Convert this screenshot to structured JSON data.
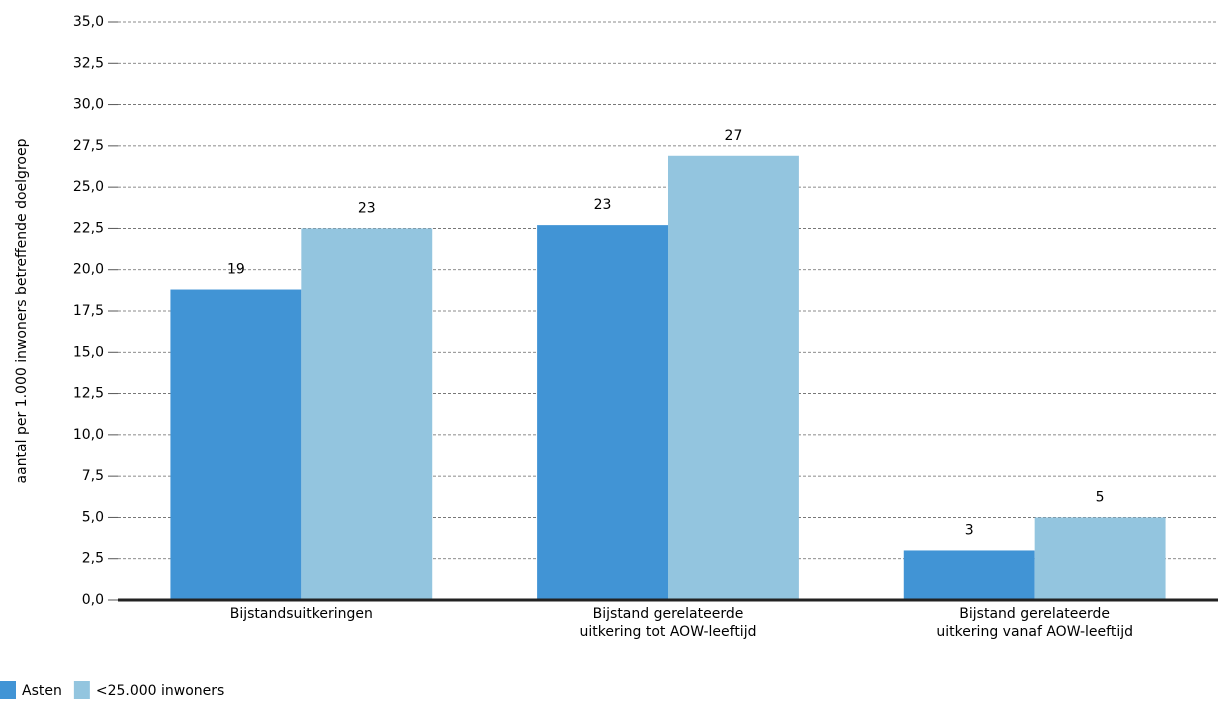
{
  "chart_data": {
    "type": "bar",
    "y_label": "aantal per 1.000 inwoners betreffende doelgroep",
    "categories": [
      "Bijstandsuitkeringen",
      "Bijstand gerelateerde\nuitkering tot AOW-leeftijd",
      "Bijstand gerelateerde\nuitkering vanaf AOW-leeftijd"
    ],
    "series": [
      {
        "name": "Asten",
        "color": "#4194d5",
        "values": [
          18.8,
          22.7,
          3.0
        ],
        "value_labels": [
          "19",
          "23",
          "3"
        ]
      },
      {
        "name": "<25.000 inwoners",
        "color": "#93c5df",
        "values": [
          22.5,
          26.9,
          5.0
        ],
        "value_labels": [
          "23",
          "27",
          "5"
        ]
      }
    ],
    "ylim": [
      0,
      35
    ],
    "yticks": [
      {
        "value": 0,
        "label": "0,0"
      },
      {
        "value": 2.5,
        "label": "2,5"
      },
      {
        "value": 5,
        "label": "5,0"
      },
      {
        "value": 7.5,
        "label": "7,5"
      },
      {
        "value": 10,
        "label": "10,0"
      },
      {
        "value": 12.5,
        "label": "12,5"
      },
      {
        "value": 15,
        "label": "15,0"
      },
      {
        "value": 17.5,
        "label": "17,5"
      },
      {
        "value": 20,
        "label": "20,0"
      },
      {
        "value": 22.5,
        "label": "22,5"
      },
      {
        "value": 25,
        "label": "25,0"
      },
      {
        "value": 27.5,
        "label": "27,5"
      },
      {
        "value": 30,
        "label": "30,0"
      },
      {
        "value": 32.5,
        "label": "32,5"
      },
      {
        "value": 35,
        "label": "35,0"
      }
    ],
    "grid": true
  }
}
